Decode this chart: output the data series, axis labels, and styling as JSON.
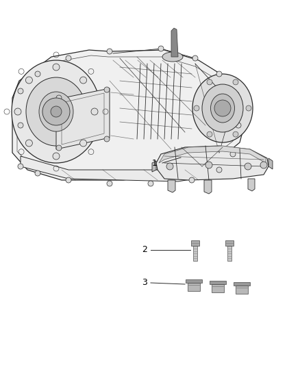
{
  "background_color": "#ffffff",
  "fig_width": 4.38,
  "fig_height": 5.33,
  "dpi": 100,
  "line_color": "#2a2a2a",
  "text_color": "#000000",
  "gray_light": "#cccccc",
  "gray_mid": "#999999",
  "gray_dark": "#555555"
}
